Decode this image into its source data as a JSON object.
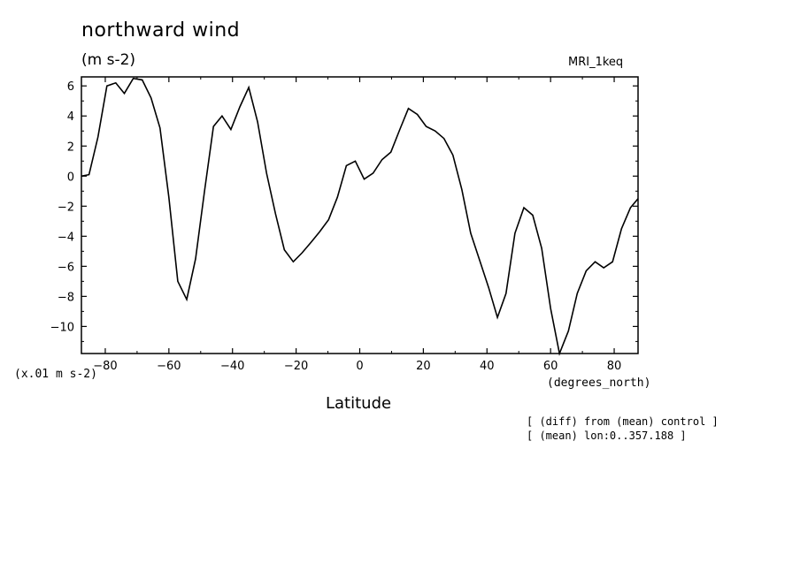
{
  "chart_data": {
    "type": "line",
    "title": "northward wind",
    "units": "(m s-2)",
    "model_label": "MRI_1keq",
    "scale_label": "(x.01 m s-2)",
    "xlabel": "Latitude",
    "xunits": "(degrees_north)",
    "notes": [
      "[ (diff) from (mean) control ]",
      "[ (mean) lon:0..357.188 ]"
    ],
    "xlim": [
      -87.5,
      87.5
    ],
    "ylim": [
      -11.8,
      6.6
    ],
    "xticks": [
      -80,
      -60,
      -40,
      -20,
      0,
      20,
      40,
      60,
      80
    ],
    "yticks": [
      6,
      4,
      2,
      0,
      -2,
      -4,
      -6,
      -8,
      -10
    ],
    "grid": false,
    "series": [
      {
        "x": [
          -87.9,
          -85.1,
          -82.3,
          -79.5,
          -76.7,
          -74.0,
          -71.2,
          -68.4,
          -65.6,
          -62.8,
          -60.0,
          -57.2,
          -54.4,
          -51.6,
          -48.8,
          -46.0,
          -43.3,
          -40.5,
          -37.7,
          -34.9,
          -32.1,
          -29.3,
          -26.5,
          -23.7,
          -20.9,
          -18.1,
          -15.3,
          -12.6,
          -9.8,
          -7.0,
          -4.2,
          -1.4,
          1.4,
          4.2,
          7.0,
          9.8,
          12.6,
          15.3,
          18.1,
          20.9,
          23.7,
          26.5,
          29.3,
          32.1,
          34.9,
          37.7,
          40.5,
          43.3,
          46.0,
          48.8,
          51.6,
          54.4,
          57.2,
          60.0,
          62.8,
          65.6,
          68.4,
          71.2,
          74.0,
          76.7,
          79.5,
          82.3,
          85.1,
          87.9
        ],
        "values": [
          0.0,
          0.1,
          2.6,
          6.0,
          6.2,
          5.5,
          6.5,
          6.4,
          5.2,
          3.2,
          -1.4,
          -7.0,
          -8.2,
          -5.5,
          -1.0,
          3.3,
          4.0,
          3.1,
          4.6,
          5.9,
          3.6,
          0.2,
          -2.5,
          -4.9,
          -5.7,
          -5.1,
          -4.4,
          -3.7,
          -2.9,
          -1.4,
          0.7,
          1.0,
          -0.2,
          0.2,
          1.1,
          1.6,
          3.1,
          4.5,
          4.1,
          3.3,
          3.0,
          2.5,
          1.4,
          -0.9,
          -3.8,
          -5.6,
          -7.4,
          -9.4,
          -7.8,
          -3.8,
          -2.1,
          -2.6,
          -4.8,
          -8.8,
          -11.8,
          -10.3,
          -7.8,
          -6.3,
          -5.7,
          -6.1,
          -5.7,
          -3.5,
          -2.1,
          -1.5
        ]
      }
    ]
  }
}
